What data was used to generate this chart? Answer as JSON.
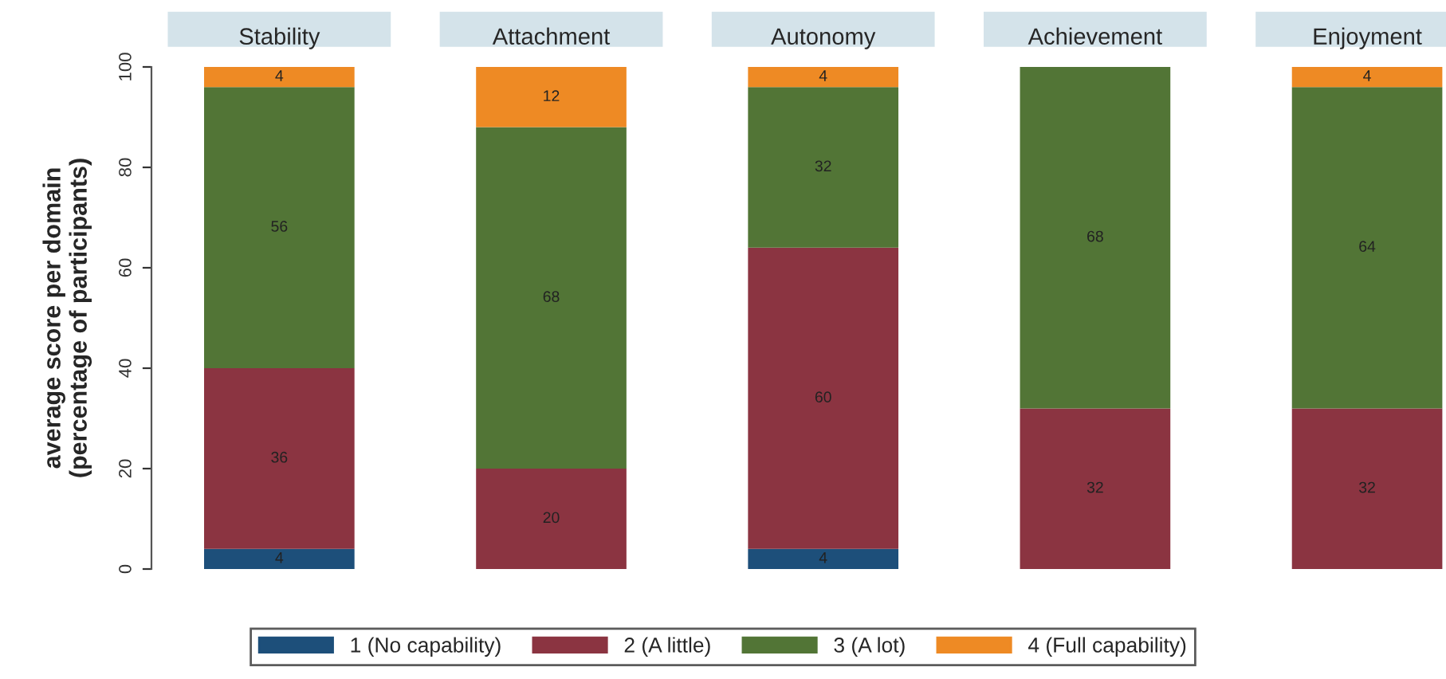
{
  "chart_data": {
    "type": "bar",
    "stacked": true,
    "ylabel": "average score per domain\n(percentage of participants)",
    "categories": [
      "Stability",
      "Attachment",
      "Autonomy",
      "Achievement",
      "Enjoyment"
    ],
    "ylim": [
      0,
      100
    ],
    "yticks": [
      0,
      20,
      40,
      60,
      80,
      100
    ],
    "data_labels": true,
    "legend": "bottom",
    "series": [
      {
        "name": "1 (No capability)",
        "color": "#1d4f7a",
        "values": [
          4,
          null,
          4,
          null,
          null
        ]
      },
      {
        "name": "2 (A little)",
        "color": "#8b3441",
        "values": [
          36,
          20,
          60,
          32,
          32
        ]
      },
      {
        "name": "3 (A lot)",
        "color": "#527536",
        "values": [
          56,
          68,
          32,
          68,
          64
        ]
      },
      {
        "name": "4 (Full capability)",
        "color": "#ee8a24",
        "values": [
          4,
          12,
          4,
          null,
          4
        ]
      }
    ]
  }
}
